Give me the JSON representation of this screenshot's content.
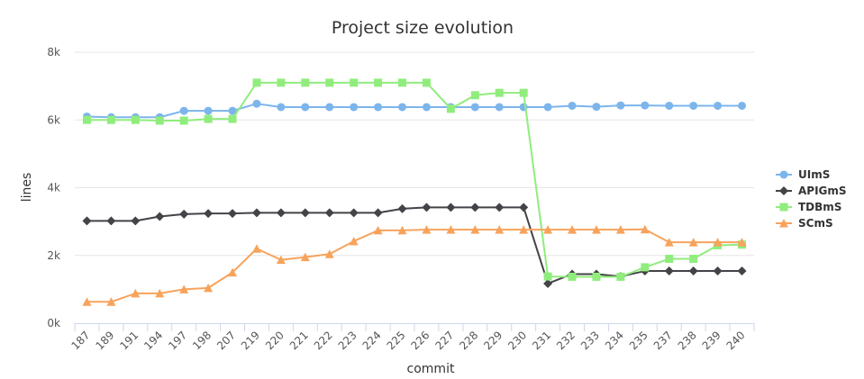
{
  "chart_data": {
    "type": "line",
    "title": "Project size evolution",
    "xlabel": "commit",
    "ylabel": "lines",
    "categories": [
      "187",
      "189",
      "191",
      "194",
      "197",
      "198",
      "207",
      "219",
      "220",
      "221",
      "222",
      "223",
      "224",
      "225",
      "226",
      "227",
      "228",
      "229",
      "230",
      "231",
      "232",
      "233",
      "234",
      "235",
      "237",
      "238",
      "239",
      "240"
    ],
    "ylim": [
      0,
      8000
    ],
    "yticks": [
      0,
      2000,
      4000,
      6000,
      8000
    ],
    "ytick_labels": [
      "0k",
      "2k",
      "4k",
      "6k",
      "8k"
    ],
    "grid": true,
    "legend_position": "right",
    "series": [
      {
        "name": "UImS",
        "color": "#7cb5ec",
        "marker": "circle",
        "values": [
          6100,
          6080,
          6080,
          6080,
          6270,
          6270,
          6270,
          6480,
          6380,
          6380,
          6380,
          6380,
          6380,
          6380,
          6380,
          6380,
          6380,
          6380,
          6380,
          6380,
          6420,
          6390,
          6430,
          6430,
          6420,
          6420,
          6420,
          6420
        ]
      },
      {
        "name": "APIGmS",
        "color": "#434348",
        "marker": "diamond",
        "values": [
          3020,
          3020,
          3020,
          3150,
          3220,
          3240,
          3240,
          3260,
          3260,
          3260,
          3260,
          3260,
          3260,
          3380,
          3420,
          3420,
          3420,
          3420,
          3420,
          1170,
          1450,
          1450,
          1380,
          1540,
          1540,
          1540,
          1540,
          1540
        ]
      },
      {
        "name": "TDBmS",
        "color": "#90ed7d",
        "marker": "square",
        "values": [
          6000,
          6000,
          6000,
          5980,
          5980,
          6030,
          6030,
          7100,
          7100,
          7100,
          7100,
          7100,
          7100,
          7100,
          7100,
          6330,
          6730,
          6800,
          6800,
          1380,
          1370,
          1370,
          1370,
          1650,
          1900,
          1900,
          2300,
          2320
        ]
      },
      {
        "name": "SCmS",
        "color": "#f7a35c",
        "marker": "triangle",
        "values": [
          630,
          630,
          880,
          880,
          1000,
          1040,
          1500,
          2200,
          1870,
          1950,
          2040,
          2420,
          2740,
          2740,
          2760,
          2760,
          2760,
          2760,
          2760,
          2760,
          2760,
          2760,
          2760,
          2770,
          2390,
          2390,
          2390,
          2390
        ]
      }
    ]
  }
}
